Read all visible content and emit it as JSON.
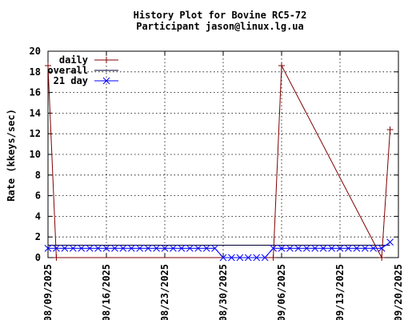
{
  "chart_data": {
    "type": "line",
    "title": "History Plot for Bovine RC5-72",
    "subtitle": "Participant jason@linux.lg.ua",
    "ylabel": "Rate (kkeys/sec)",
    "xlabel": "",
    "ylim": [
      0,
      20
    ],
    "xlim": [
      "2025-08-09",
      "2025-09-20"
    ],
    "yticks": [
      0,
      2,
      4,
      6,
      8,
      10,
      12,
      14,
      16,
      18,
      20
    ],
    "xticks": [
      "08/09/2025",
      "08/16/2025",
      "08/23/2025",
      "08/30/2025",
      "09/06/2025",
      "09/13/2025",
      "09/20/2025"
    ],
    "grid": true,
    "legend_position": "top-left",
    "x": [
      "2025-08-09",
      "2025-08-10",
      "2025-08-11",
      "2025-08-12",
      "2025-08-13",
      "2025-08-14",
      "2025-08-15",
      "2025-08-16",
      "2025-08-17",
      "2025-08-18",
      "2025-08-19",
      "2025-08-20",
      "2025-08-21",
      "2025-08-22",
      "2025-08-23",
      "2025-08-24",
      "2025-08-25",
      "2025-08-26",
      "2025-08-27",
      "2025-08-28",
      "2025-08-29",
      "2025-08-30",
      "2025-08-31",
      "2025-09-01",
      "2025-09-02",
      "2025-09-03",
      "2025-09-04",
      "2025-09-05",
      "2025-09-06",
      "2025-09-07",
      "2025-09-08",
      "2025-09-09",
      "2025-09-10",
      "2025-09-11",
      "2025-09-12",
      "2025-09-13",
      "2025-09-14",
      "2025-09-15",
      "2025-09-16",
      "2025-09-17",
      "2025-09-18",
      "2025-09-19"
    ],
    "series": [
      {
        "name": "daily",
        "color": "#800000",
        "marker": "plus",
        "x": [
          "2025-08-09",
          "2025-08-10",
          "2025-09-05",
          "2025-09-06",
          "2025-09-18",
          "2025-09-19"
        ],
        "values": [
          18.6,
          0,
          0,
          18.6,
          0,
          12.4
        ]
      },
      {
        "name": "overall",
        "color": "#000033",
        "marker": "none",
        "x": [
          "2025-08-09",
          "2025-09-19"
        ],
        "values": [
          1.2,
          1.2
        ]
      },
      {
        "name": "21 day",
        "color": "#0000ff",
        "marker": "x",
        "values": [
          0.9,
          0.9,
          0.9,
          0.9,
          0.9,
          0.9,
          0.9,
          0.9,
          0.9,
          0.9,
          0.9,
          0.9,
          0.9,
          0.9,
          0.9,
          0.9,
          0.9,
          0.9,
          0.9,
          0.9,
          0.9,
          0,
          0,
          0,
          0,
          0,
          0,
          0.9,
          0.9,
          0.9,
          0.9,
          0.9,
          0.9,
          0.9,
          0.9,
          0.9,
          0.9,
          0.9,
          0.9,
          0.9,
          0.9,
          1.5
        ]
      }
    ]
  }
}
